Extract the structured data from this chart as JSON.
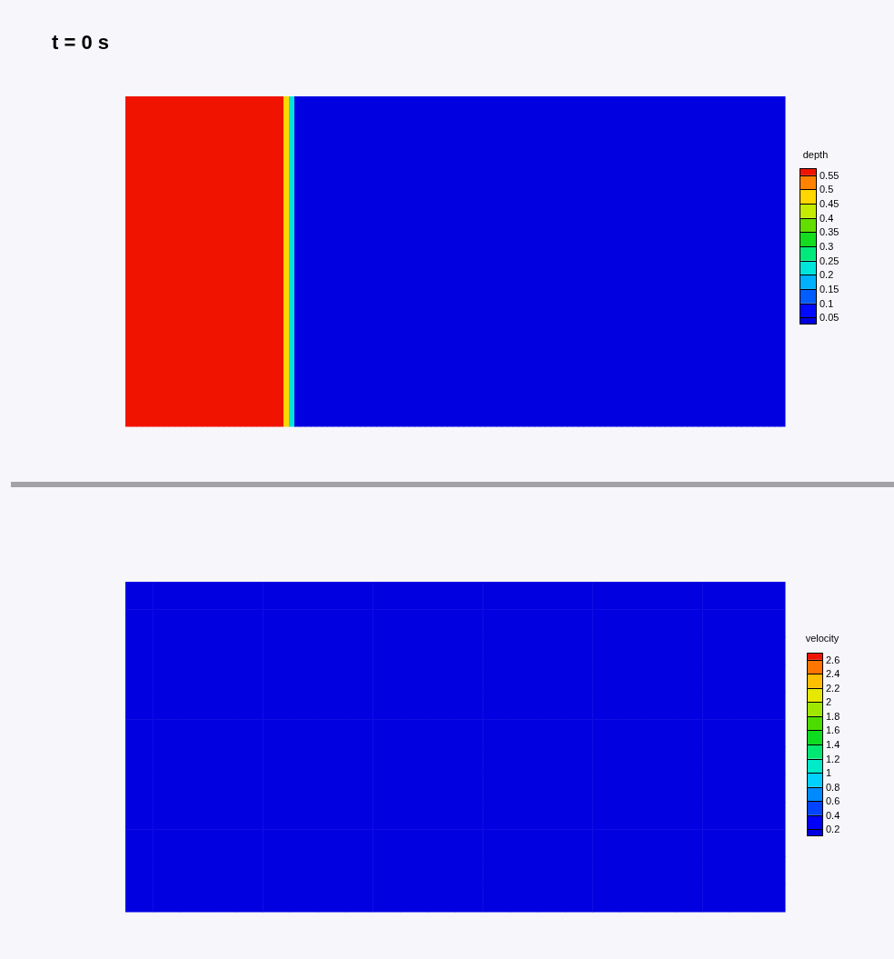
{
  "chart_data": [
    {
      "type": "heatmap",
      "title": "t = 0 s",
      "clabel": "depth",
      "clim": [
        0.025,
        0.575
      ],
      "cticks": [
        0.05,
        0.1,
        0.15,
        0.2,
        0.25,
        0.3,
        0.35,
        0.4,
        0.45,
        0.5,
        0.55
      ],
      "categories": [
        null,
        null,
        null,
        null,
        null,
        null,
        null,
        null,
        null,
        null,
        null,
        null,
        null,
        null,
        null,
        null,
        null,
        null,
        null,
        null,
        null,
        null,
        null,
        null,
        null,
        null,
        null,
        null,
        null,
        null,
        null,
        null,
        null,
        null,
        null,
        null,
        null,
        null,
        null,
        null,
        null,
        null,
        null,
        null,
        null,
        null,
        null,
        null,
        null,
        null,
        null,
        null,
        null,
        null,
        null,
        null,
        null,
        null,
        null,
        null,
        null,
        null,
        null,
        null,
        null,
        null,
        null,
        null,
        null,
        null,
        null,
        null,
        null,
        null,
        null,
        null,
        null,
        null,
        null,
        null,
        null,
        null,
        null,
        null,
        null,
        null,
        null,
        null,
        null,
        null,
        null,
        null,
        null,
        null,
        null,
        null,
        null,
        null,
        null,
        null,
        null,
        null,
        null,
        null,
        null,
        null,
        null,
        null,
        null,
        null,
        null,
        null,
        null,
        null,
        null,
        null,
        null,
        null,
        null,
        null,
        null
      ],
      "y_categories": [
        null
      ],
      "cells": [
        [
          0.56,
          0.56,
          0.56,
          0.56,
          0.56,
          0.56,
          0.56,
          0.56,
          0.56,
          0.56,
          0.56,
          0.56,
          0.56,
          0.56,
          0.56,
          0.56,
          0.56,
          0.56,
          0.56,
          0.56,
          0.56,
          0.56,
          0.56,
          0.56,
          0.56,
          0.56,
          0.56,
          0.56,
          0.56,
          0.45,
          0.2,
          0.04,
          0.04,
          0.04,
          0.04,
          0.04,
          0.04,
          0.04,
          0.04,
          0.04,
          0.04,
          0.04,
          0.04,
          0.04,
          0.04,
          0.04,
          0.04,
          0.04,
          0.04,
          0.04,
          0.04,
          0.04,
          0.04,
          0.04,
          0.04,
          0.04,
          0.04,
          0.04,
          0.04,
          0.04,
          0.04,
          0.04,
          0.04,
          0.04,
          0.04,
          0.04,
          0.04,
          0.04,
          0.04,
          0.04,
          0.04,
          0.04,
          0.04,
          0.04,
          0.04,
          0.04,
          0.04,
          0.04,
          0.04,
          0.04,
          0.04,
          0.04,
          0.04,
          0.04,
          0.04,
          0.04,
          0.04,
          0.04,
          0.04,
          0.04,
          0.04,
          0.04,
          0.04,
          0.04,
          0.04,
          0.04,
          0.04,
          0.04,
          0.04,
          0.04,
          0.04,
          0.04,
          0.04,
          0.04,
          0.04,
          0.04,
          0.04,
          0.04,
          0.04,
          0.04,
          0.04,
          0.04,
          0.04,
          0.04,
          0.04,
          0.04,
          0.04,
          0.04,
          0.04,
          0.04,
          0.04
        ]
      ]
    },
    {
      "type": "heatmap",
      "clabel": "velocity",
      "clim": [
        0.1,
        2.7
      ],
      "cticks": [
        0.2,
        0.4,
        0.6,
        0.8,
        1,
        1.2,
        1.4,
        1.6,
        1.8,
        2,
        2.2,
        2.4,
        2.6
      ],
      "categories": [
        null,
        null,
        null,
        null,
        null,
        null,
        null,
        null,
        null,
        null,
        null,
        null,
        null,
        null,
        null,
        null,
        null,
        null,
        null,
        null,
        null,
        null,
        null,
        null
      ],
      "y_categories": [
        null,
        null,
        null,
        null,
        null,
        null,
        null,
        null,
        null,
        null,
        null,
        null
      ],
      "cells": [
        [
          0.15,
          0.15,
          0.15,
          0.15,
          0.15,
          0.15,
          0.15,
          0.15,
          0.15,
          0.15,
          0.15,
          0.15,
          0.15,
          0.15,
          0.15,
          0.15,
          0.15,
          0.15,
          0.15,
          0.15,
          0.15,
          0.15,
          0.15,
          0.15
        ],
        [
          0.15,
          0.15,
          0.15,
          0.15,
          0.15,
          0.15,
          0.15,
          0.15,
          0.15,
          0.15,
          0.15,
          0.15,
          0.15,
          0.15,
          0.15,
          0.15,
          0.15,
          0.15,
          0.15,
          0.15,
          0.15,
          0.15,
          0.15,
          0.15
        ],
        [
          0.15,
          0.15,
          0.15,
          0.15,
          0.15,
          0.15,
          0.15,
          0.15,
          0.15,
          0.15,
          0.15,
          0.15,
          0.15,
          0.15,
          0.15,
          0.15,
          0.15,
          0.15,
          0.15,
          0.15,
          0.15,
          0.15,
          0.15,
          0.15
        ],
        [
          0.15,
          0.15,
          0.15,
          0.15,
          0.15,
          0.15,
          0.15,
          0.15,
          0.15,
          0.15,
          0.15,
          0.15,
          0.15,
          0.15,
          0.15,
          0.15,
          0.15,
          0.15,
          0.15,
          0.15,
          0.15,
          0.15,
          0.15,
          0.15
        ],
        [
          0.15,
          0.15,
          0.15,
          0.15,
          0.15,
          0.15,
          0.15,
          0.15,
          0.15,
          0.15,
          0.15,
          0.15,
          0.15,
          0.15,
          0.15,
          0.15,
          0.15,
          0.15,
          0.15,
          0.15,
          0.15,
          0.15,
          0.15,
          0.15
        ],
        [
          0.15,
          0.15,
          0.15,
          0.15,
          0.15,
          0.15,
          0.15,
          0.15,
          0.15,
          0.15,
          0.15,
          0.15,
          0.15,
          0.15,
          0.15,
          0.15,
          0.15,
          0.15,
          0.15,
          0.15,
          0.15,
          0.15,
          0.15,
          0.15
        ],
        [
          0.15,
          0.15,
          0.15,
          0.15,
          0.15,
          0.15,
          0.15,
          0.15,
          0.15,
          0.15,
          0.15,
          0.15,
          0.15,
          0.15,
          0.15,
          0.15,
          0.15,
          0.15,
          0.15,
          0.15,
          0.15,
          0.15,
          0.15,
          0.15
        ],
        [
          0.15,
          0.15,
          0.15,
          0.15,
          0.15,
          0.15,
          0.15,
          0.15,
          0.15,
          0.15,
          0.15,
          0.15,
          0.15,
          0.15,
          0.15,
          0.15,
          0.15,
          0.15,
          0.15,
          0.15,
          0.15,
          0.15,
          0.15,
          0.15
        ],
        [
          0.15,
          0.15,
          0.15,
          0.15,
          0.15,
          0.15,
          0.15,
          0.15,
          0.15,
          0.15,
          0.15,
          0.15,
          0.15,
          0.15,
          0.15,
          0.15,
          0.15,
          0.15,
          0.15,
          0.15,
          0.15,
          0.15,
          0.15,
          0.15
        ],
        [
          0.15,
          0.15,
          0.15,
          0.15,
          0.15,
          0.15,
          0.15,
          0.15,
          0.15,
          0.15,
          0.15,
          0.15,
          0.15,
          0.15,
          0.15,
          0.15,
          0.15,
          0.15,
          0.15,
          0.15,
          0.15,
          0.15,
          0.15,
          0.15
        ],
        [
          0.15,
          0.15,
          0.15,
          0.15,
          0.15,
          0.15,
          0.15,
          0.15,
          0.15,
          0.15,
          0.15,
          0.15,
          0.15,
          0.15,
          0.15,
          0.15,
          0.15,
          0.15,
          0.15,
          0.15,
          0.15,
          0.15,
          0.15,
          0.15
        ],
        [
          0.15,
          0.15,
          0.15,
          0.15,
          0.15,
          0.15,
          0.15,
          0.15,
          0.15,
          0.15,
          0.15,
          0.15,
          0.15,
          0.15,
          0.15,
          0.15,
          0.15,
          0.15,
          0.15,
          0.15,
          0.15,
          0.15,
          0.15,
          0.15
        ]
      ]
    }
  ]
}
